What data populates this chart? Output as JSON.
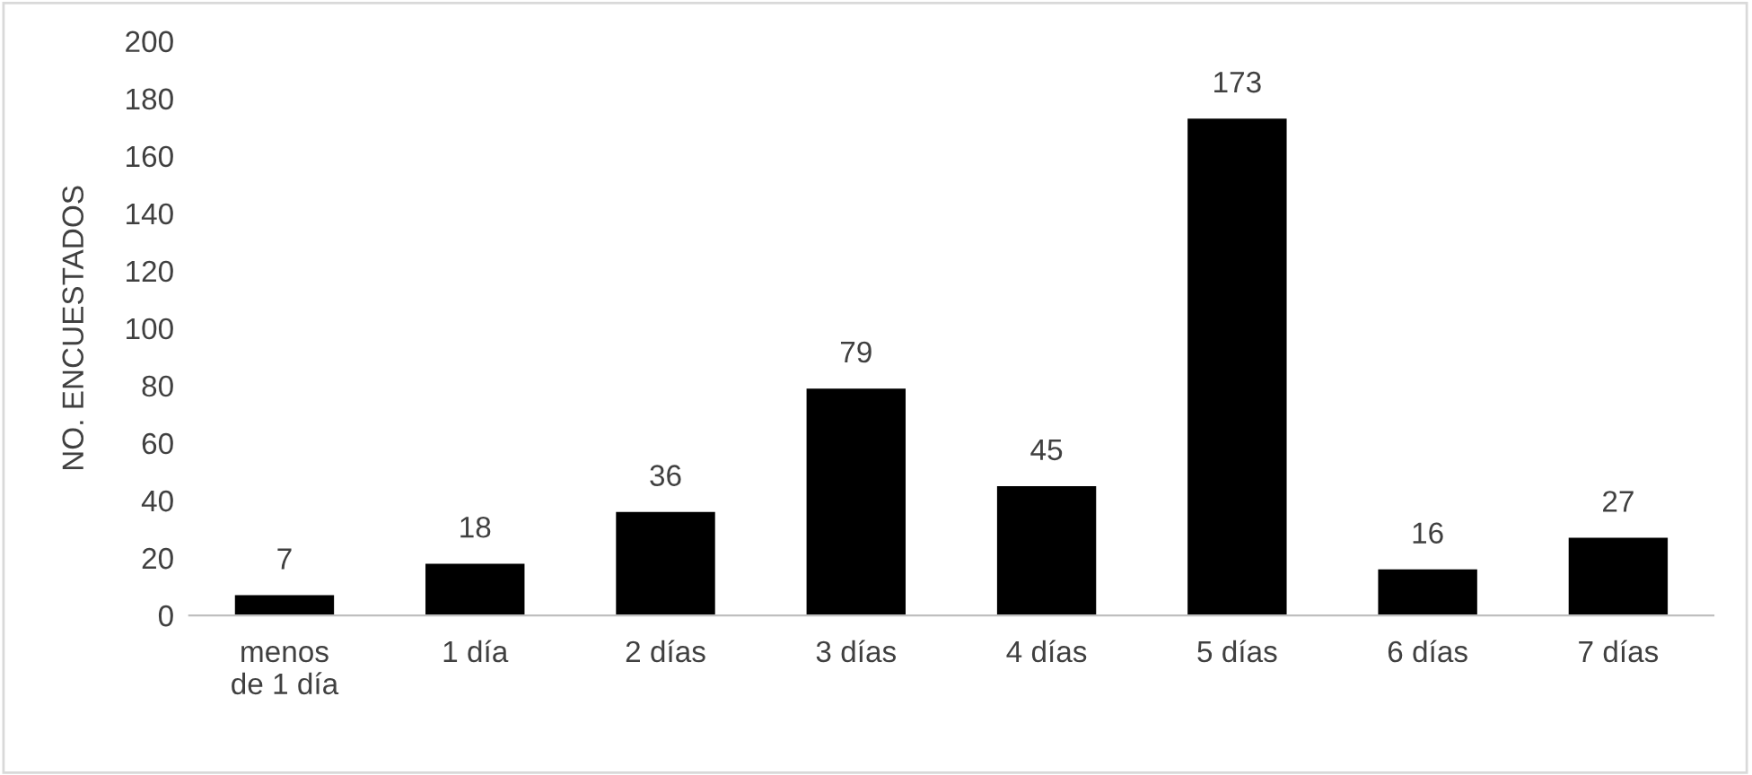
{
  "chart_data": {
    "type": "bar",
    "ylabel": "NO. ENCUESTADOS",
    "categories": [
      "menos de 1 día",
      "1 día",
      "2 días",
      "3 días",
      "4 días",
      "5 días",
      "6 días",
      "7 días"
    ],
    "values": [
      7,
      18,
      36,
      79,
      45,
      173,
      16,
      27
    ],
    "color": "#000000",
    "ylim": [
      0,
      200
    ],
    "yticks": [
      0,
      20,
      40,
      60,
      80,
      100,
      120,
      140,
      160,
      180,
      200
    ],
    "grid": false,
    "data_labels": true,
    "legend": false
  }
}
